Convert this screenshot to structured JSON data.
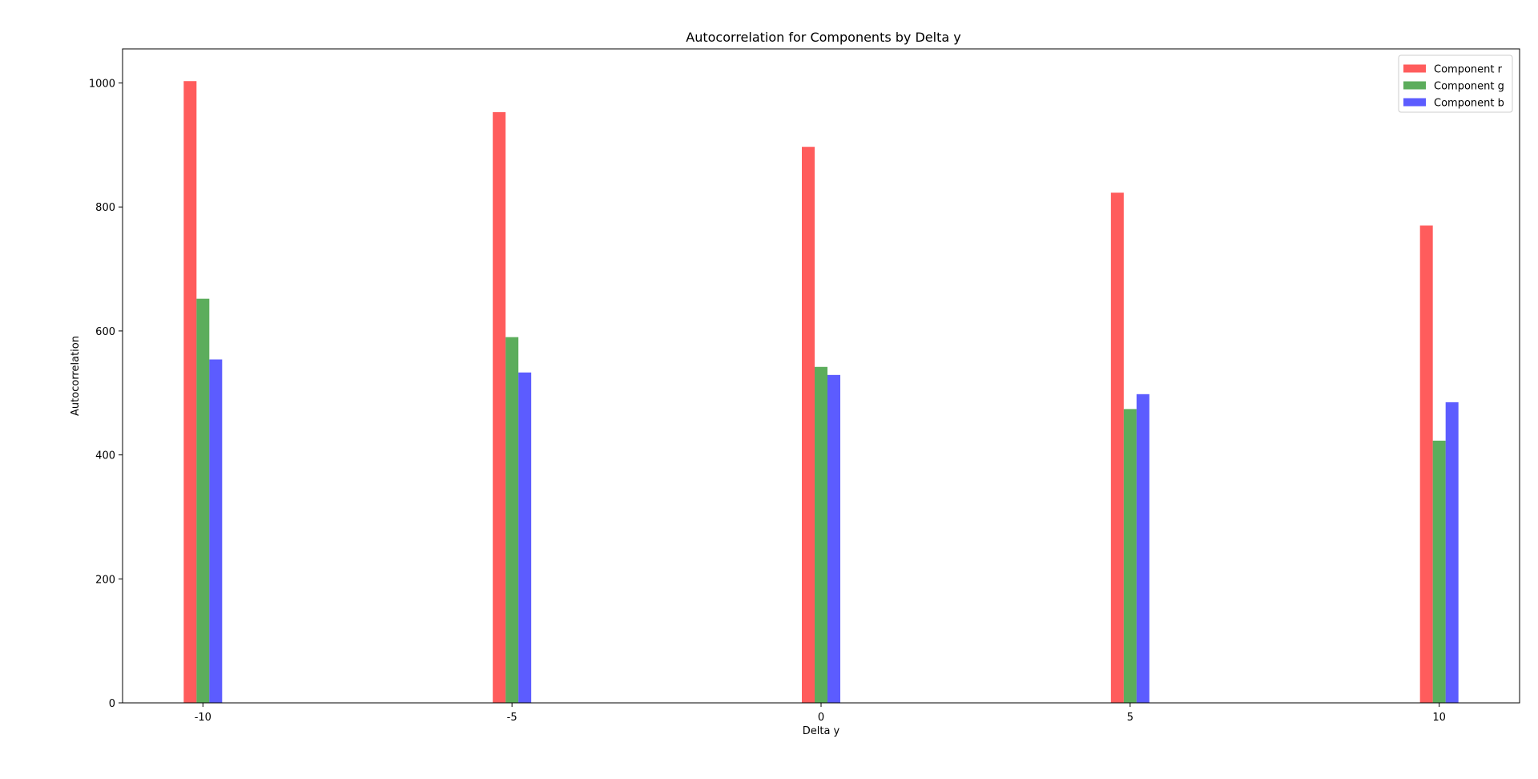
{
  "chart_data": {
    "type": "bar",
    "title": "Autocorrelation for Components by Delta y",
    "xlabel": "Delta y",
    "ylabel": "Autocorrelation",
    "categories": [
      "-10",
      "-5",
      "0",
      "5",
      "10"
    ],
    "x": [
      -10,
      -5,
      0,
      5,
      10
    ],
    "xlim": [
      -11.3,
      11.3
    ],
    "ylim": [
      0,
      1055
    ],
    "yticks": [
      0,
      200,
      400,
      600,
      800,
      1000
    ],
    "grid": false,
    "legend_position": "top-right",
    "series": [
      {
        "name": "Component r",
        "color": "#ff3333",
        "values": [
          1003,
          953,
          897,
          823,
          770
        ]
      },
      {
        "name": "Component g",
        "color": "#339933",
        "values": [
          652,
          590,
          542,
          474,
          423
        ]
      },
      {
        "name": "Component b",
        "color": "#3333ff",
        "values": [
          554,
          533,
          529,
          498,
          485
        ]
      }
    ]
  }
}
